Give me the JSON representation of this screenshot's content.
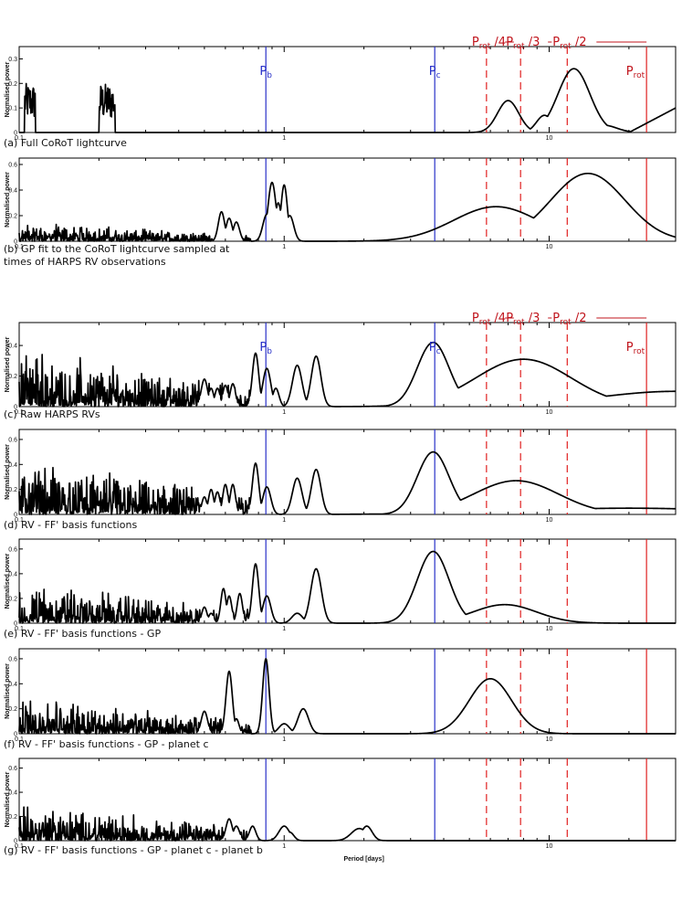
{
  "figure": {
    "xlabel": "Period [days]",
    "ylabel": "Normalised power",
    "xlim": [
      0.1,
      30
    ],
    "x_ticks": [
      {
        "value": 0.1,
        "label": "0.1"
      },
      {
        "value": 1,
        "label": "1"
      },
      {
        "value": 10,
        "label": "10"
      }
    ],
    "markers": {
      "planets": [
        {
          "name": "b",
          "prefix": "P",
          "sub": "b",
          "period": 0.853,
          "color": "#2830c8"
        },
        {
          "name": "c",
          "prefix": "P",
          "sub": "c",
          "period": 3.7,
          "color": "#2830c8"
        }
      ],
      "rotation": [
        {
          "prefix": "P",
          "sub": "rot",
          "suffix": " /4",
          "period": 5.8,
          "color": "#e02020"
        },
        {
          "prefix": "P",
          "sub": "rot",
          "suffix": " /3",
          "period": 7.8,
          "color": "#e02020"
        },
        {
          "prefix": "P",
          "sub": "rot",
          "suffix": " /2",
          "period": 11.7,
          "color": "#e02020"
        },
        {
          "prefix": "P",
          "sub": "rot",
          "suffix": "",
          "period": 23.3,
          "color": "#e02020"
        }
      ]
    }
  },
  "chart_data": [
    {
      "type": "line",
      "caption": [
        "(a) Full CoRoT lightcurve"
      ],
      "ylim": [
        0,
        0.35
      ],
      "y_ticks": [
        {
          "value": 0,
          "label": "0"
        },
        {
          "value": 0.1,
          "label": "0.1"
        },
        {
          "value": 0.2,
          "label": "0.2"
        },
        {
          "value": 0.3,
          "label": "0.3"
        }
      ],
      "show_marker_labels": true,
      "peaks": [
        [
          7.0,
          0.13,
          0.04
        ],
        [
          9.6,
          0.07,
          0.03
        ],
        [
          12.4,
          0.26,
          0.06
        ],
        [
          16.0,
          0.03,
          0.05
        ]
      ],
      "baseline_tail": [
        [
          20,
          0.0
        ],
        [
          30,
          0.1
        ]
      ],
      "clusters": [
        [
          0.105,
          0.115,
          0.2
        ],
        [
          0.2,
          0.23,
          0.2
        ]
      ],
      "noise_level": 0.0,
      "x_start": 0.1
    },
    {
      "type": "line",
      "caption": [
        "(b) GP fit to the CoRoT lightcurve sampled at",
        "times of HARPS RV observations"
      ],
      "ylim": [
        0,
        0.65
      ],
      "y_ticks": [
        {
          "value": 0,
          "label": "0"
        },
        {
          "value": 0.2,
          "label": "0.2"
        },
        {
          "value": 0.4,
          "label": "0.4"
        },
        {
          "value": 0.6,
          "label": "0.6"
        }
      ],
      "show_marker_labels": false,
      "peaks": [
        [
          0.58,
          0.23,
          0.012
        ],
        [
          0.62,
          0.18,
          0.012
        ],
        [
          0.66,
          0.15,
          0.012
        ],
        [
          0.86,
          0.21,
          0.015
        ],
        [
          0.9,
          0.46,
          0.015
        ],
        [
          0.95,
          0.3,
          0.012
        ],
        [
          1.0,
          0.44,
          0.012
        ],
        [
          1.05,
          0.2,
          0.015
        ],
        [
          6.3,
          0.27,
          0.16
        ],
        [
          14.0,
          0.53,
          0.14
        ]
      ],
      "baseline_tail": [],
      "clusters": [],
      "noise_level": 0.1,
      "x_start": 0.1
    },
    {
      "type": "line",
      "caption": [
        "(c) Raw HARPS RVs"
      ],
      "ylim": [
        0,
        0.55
      ],
      "y_ticks": [
        {
          "value": 0,
          "label": "0"
        },
        {
          "value": 0.2,
          "label": "0.2"
        },
        {
          "value": 0.4,
          "label": "0.4"
        }
      ],
      "show_marker_labels": true,
      "peaks": [
        [
          0.5,
          0.18,
          0.012
        ],
        [
          0.53,
          0.12,
          0.01
        ],
        [
          0.56,
          0.12,
          0.01
        ],
        [
          0.6,
          0.14,
          0.01
        ],
        [
          0.64,
          0.15,
          0.01
        ],
        [
          0.78,
          0.35,
          0.012
        ],
        [
          0.86,
          0.25,
          0.015
        ],
        [
          0.93,
          0.12,
          0.012
        ],
        [
          1.12,
          0.27,
          0.018
        ],
        [
          1.32,
          0.33,
          0.018
        ],
        [
          3.65,
          0.42,
          0.06
        ],
        [
          8.0,
          0.31,
          0.18
        ],
        [
          30,
          0.1,
          0.3
        ]
      ],
      "baseline_tail": [],
      "clusters": [],
      "noise_level": 0.25,
      "x_start": 0.1
    },
    {
      "type": "line",
      "caption": [
        "(d) RV - FF' basis functions"
      ],
      "ylim": [
        0,
        0.68
      ],
      "y_ticks": [
        {
          "value": 0,
          "label": "0"
        },
        {
          "value": 0.2,
          "label": "0.2"
        },
        {
          "value": 0.4,
          "label": "0.4"
        },
        {
          "value": 0.6,
          "label": "0.6"
        }
      ],
      "show_marker_labels": false,
      "peaks": [
        [
          0.5,
          0.14,
          0.01
        ],
        [
          0.53,
          0.2,
          0.01
        ],
        [
          0.56,
          0.18,
          0.01
        ],
        [
          0.6,
          0.24,
          0.01
        ],
        [
          0.64,
          0.24,
          0.01
        ],
        [
          0.78,
          0.41,
          0.012
        ],
        [
          0.86,
          0.22,
          0.015
        ],
        [
          1.12,
          0.29,
          0.018
        ],
        [
          1.32,
          0.36,
          0.018
        ],
        [
          3.65,
          0.5,
          0.06
        ],
        [
          7.5,
          0.27,
          0.16
        ],
        [
          20,
          0.05,
          0.4
        ]
      ],
      "baseline_tail": [],
      "clusters": [],
      "noise_level": 0.3,
      "x_start": 0.1
    },
    {
      "type": "line",
      "caption": [
        "(e) RV - FF' basis functions - GP"
      ],
      "ylim": [
        0,
        0.68
      ],
      "y_ticks": [
        {
          "value": 0,
          "label": "0"
        },
        {
          "value": 0.2,
          "label": "0.2"
        },
        {
          "value": 0.4,
          "label": "0.4"
        },
        {
          "value": 0.6,
          "label": "0.6"
        }
      ],
      "show_marker_labels": false,
      "peaks": [
        [
          0.5,
          0.13,
          0.01
        ],
        [
          0.53,
          0.08,
          0.01
        ],
        [
          0.59,
          0.28,
          0.01
        ],
        [
          0.62,
          0.22,
          0.01
        ],
        [
          0.68,
          0.24,
          0.01
        ],
        [
          0.78,
          0.48,
          0.012
        ],
        [
          0.86,
          0.22,
          0.015
        ],
        [
          1.12,
          0.08,
          0.02
        ],
        [
          1.32,
          0.44,
          0.02
        ],
        [
          3.65,
          0.58,
          0.06
        ],
        [
          6.8,
          0.15,
          0.12
        ]
      ],
      "baseline_tail": [],
      "clusters": [],
      "noise_level": 0.22,
      "x_start": 0.1
    },
    {
      "type": "line",
      "caption": [
        "(f) RV - FF' basis functions - GP - planet c"
      ],
      "ylim": [
        0,
        0.68
      ],
      "y_ticks": [
        {
          "value": 0,
          "label": "0"
        },
        {
          "value": 0.2,
          "label": "0.2"
        },
        {
          "value": 0.4,
          "label": "0.4"
        },
        {
          "value": 0.6,
          "label": "0.6"
        }
      ],
      "show_marker_labels": false,
      "peaks": [
        [
          0.5,
          0.18,
          0.012
        ],
        [
          0.62,
          0.5,
          0.012
        ],
        [
          0.66,
          0.12,
          0.01
        ],
        [
          0.853,
          0.6,
          0.012
        ],
        [
          1.0,
          0.08,
          0.02
        ],
        [
          1.18,
          0.2,
          0.02
        ],
        [
          6.0,
          0.44,
          0.08
        ]
      ],
      "baseline_tail": [],
      "clusters": [],
      "noise_level": 0.2,
      "x_start": 0.1
    },
    {
      "type": "line",
      "caption": [
        "(g) RV - FF' basis functions - GP - planet c - planet b"
      ],
      "ylim": [
        0,
        0.68
      ],
      "y_ticks": [
        {
          "value": 0,
          "label": "0"
        },
        {
          "value": 0.2,
          "label": "0.2"
        },
        {
          "value": 0.4,
          "label": "0.4"
        },
        {
          "value": 0.6,
          "label": "0.6"
        }
      ],
      "show_marker_labels": false,
      "peaks": [
        [
          0.62,
          0.18,
          0.012
        ],
        [
          0.66,
          0.12,
          0.012
        ],
        [
          0.76,
          0.12,
          0.012
        ],
        [
          1.0,
          0.12,
          0.02
        ],
        [
          1.05,
          0.07,
          0.015
        ],
        [
          1.92,
          0.1,
          0.03
        ],
        [
          2.05,
          0.12,
          0.02
        ]
      ],
      "baseline_tail": [],
      "clusters": [],
      "noise_level": 0.2,
      "x_start": 0.1
    }
  ]
}
